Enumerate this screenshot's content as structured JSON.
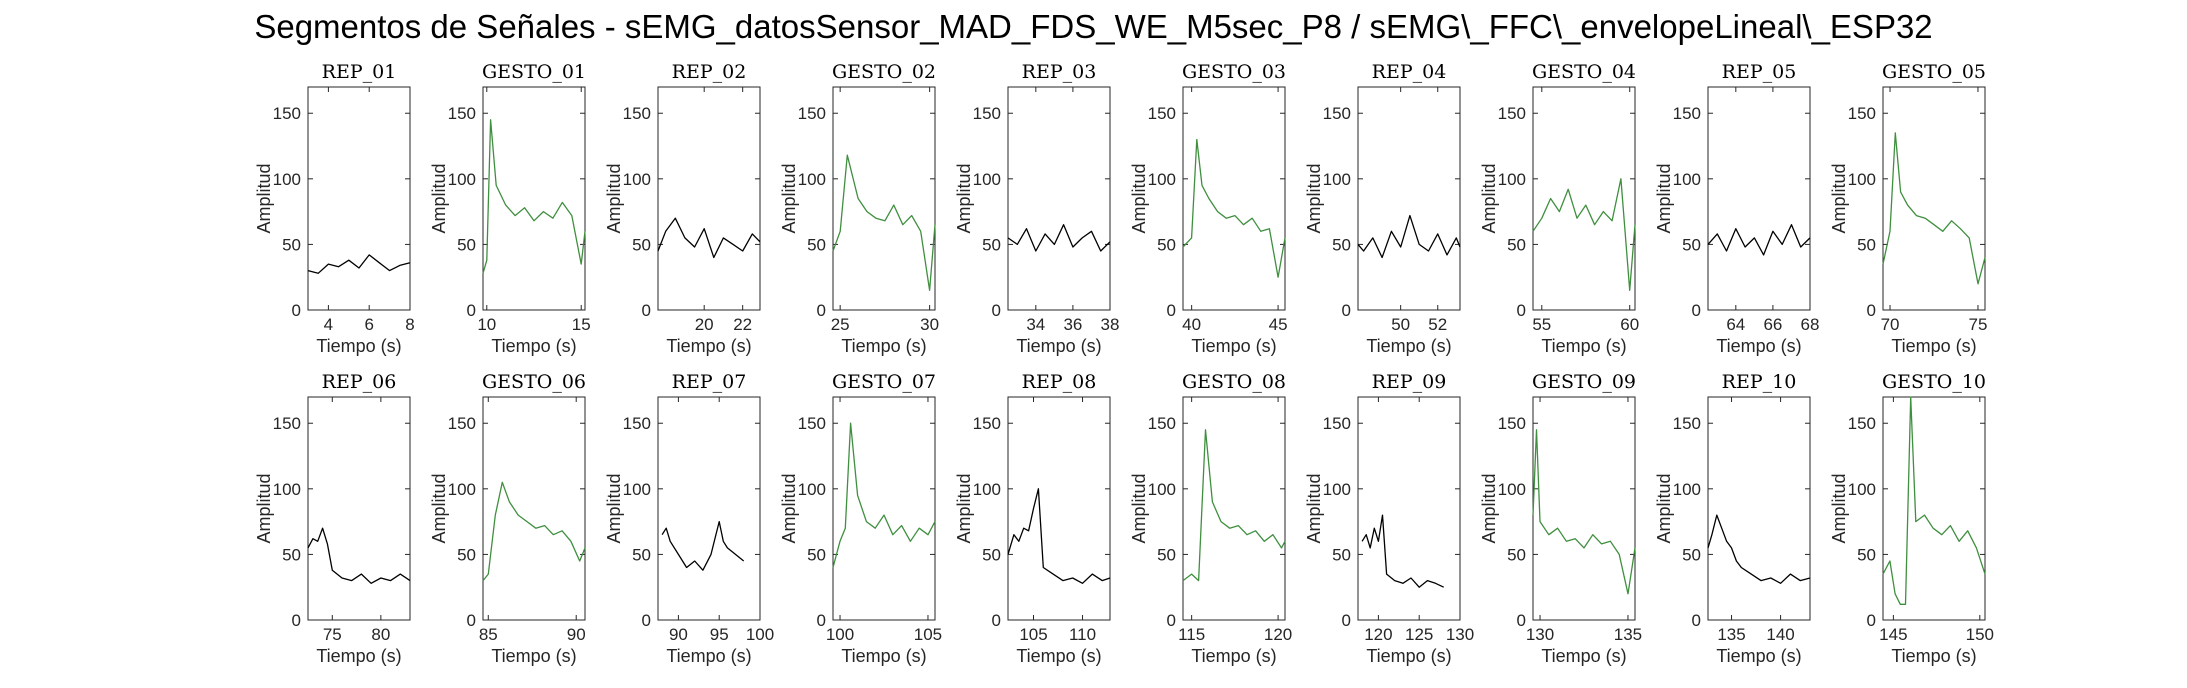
{
  "title": "Segmentos de Señales - sEMG_datosSensor_MAD_FDS_WE_M5sec_P8 / sEMG\\_FFC\\_envelopeLineal\\_ESP32",
  "colors": {
    "rep": "#000000",
    "gesto": "#3f8f3f",
    "axis": "#262626"
  },
  "chart_data": [
    {
      "type": "line",
      "title": "REP_01",
      "xlabel": "Tiempo (s)",
      "ylabel": "Amplitud",
      "xlim": [
        3,
        8
      ],
      "ylim": [
        0,
        170
      ],
      "xticks": [
        4,
        6,
        8
      ],
      "yticks": [
        0,
        50,
        100,
        150
      ],
      "color": "rep",
      "x": [
        3,
        3.5,
        4,
        4.5,
        5,
        5.5,
        6,
        6.5,
        7,
        7.5,
        8
      ],
      "y": [
        30,
        28,
        35,
        33,
        38,
        32,
        42,
        36,
        30,
        34,
        36
      ]
    },
    {
      "type": "line",
      "title": "GESTO_01",
      "xlabel": "Tiempo (s)",
      "ylabel": "Amplitud",
      "xlim": [
        9.8,
        15.2
      ],
      "ylim": [
        0,
        170
      ],
      "xticks": [
        10,
        15
      ],
      "yticks": [
        0,
        50,
        100,
        150
      ],
      "color": "gesto",
      "x": [
        9.8,
        10,
        10.2,
        10.5,
        11,
        11.5,
        12,
        12.5,
        13,
        13.5,
        14,
        14.5,
        15,
        15.2
      ],
      "y": [
        28,
        38,
        145,
        95,
        80,
        72,
        78,
        68,
        75,
        70,
        82,
        72,
        35,
        60
      ]
    },
    {
      "type": "line",
      "title": "REP_02",
      "xlabel": "Tiempo (s)",
      "ylabel": "Amplitud",
      "xlim": [
        17.6,
        22.9
      ],
      "ylim": [
        0,
        170
      ],
      "xticks": [
        20,
        22
      ],
      "yticks": [
        0,
        50,
        100,
        150
      ],
      "color": "rep",
      "x": [
        17.6,
        18,
        18.5,
        19,
        19.5,
        20,
        20.5,
        21,
        21.5,
        22,
        22.5,
        22.9
      ],
      "y": [
        45,
        60,
        70,
        55,
        48,
        62,
        40,
        55,
        50,
        45,
        58,
        52
      ]
    },
    {
      "type": "line",
      "title": "GESTO_02",
      "xlabel": "Tiempo (s)",
      "ylabel": "Amplitud",
      "xlim": [
        24.6,
        30.3
      ],
      "ylim": [
        0,
        170
      ],
      "xticks": [
        25,
        30
      ],
      "yticks": [
        0,
        50,
        100,
        150
      ],
      "color": "gesto",
      "x": [
        24.6,
        25,
        25.4,
        26,
        26.5,
        27,
        27.5,
        28,
        28.5,
        29,
        29.5,
        30,
        30.3
      ],
      "y": [
        45,
        60,
        118,
        85,
        75,
        70,
        68,
        80,
        65,
        72,
        60,
        15,
        65
      ]
    },
    {
      "type": "line",
      "title": "REP_03",
      "xlabel": "Tiempo (s)",
      "ylabel": "Amplitud",
      "xlim": [
        32.5,
        38
      ],
      "ylim": [
        0,
        170
      ],
      "xticks": [
        34,
        36,
        38
      ],
      "yticks": [
        0,
        50,
        100,
        150
      ],
      "color": "rep",
      "x": [
        32.5,
        33,
        33.5,
        34,
        34.5,
        35,
        35.5,
        36,
        36.5,
        37,
        37.5,
        38
      ],
      "y": [
        55,
        50,
        62,
        45,
        58,
        50,
        65,
        48,
        55,
        60,
        45,
        52
      ]
    },
    {
      "type": "line",
      "title": "GESTO_03",
      "xlabel": "Tiempo (s)",
      "ylabel": "Amplitud",
      "xlim": [
        39.5,
        45.4
      ],
      "ylim": [
        0,
        170
      ],
      "xticks": [
        40,
        45
      ],
      "yticks": [
        0,
        50,
        100,
        150
      ],
      "color": "gesto",
      "x": [
        39.5,
        40,
        40.3,
        40.6,
        41,
        41.5,
        42,
        42.5,
        43,
        43.5,
        44,
        44.5,
        45,
        45.4
      ],
      "y": [
        48,
        55,
        130,
        95,
        85,
        75,
        70,
        72,
        65,
        70,
        60,
        62,
        25,
        55
      ]
    },
    {
      "type": "line",
      "title": "REP_04",
      "xlabel": "Tiempo (s)",
      "ylabel": "Amplitud",
      "xlim": [
        47.7,
        53.2
      ],
      "ylim": [
        0,
        170
      ],
      "xticks": [
        50,
        52
      ],
      "yticks": [
        0,
        50,
        100,
        150
      ],
      "color": "rep",
      "x": [
        47.7,
        48,
        48.5,
        49,
        49.5,
        50,
        50.5,
        51,
        51.5,
        52,
        52.5,
        53,
        53.2
      ],
      "y": [
        50,
        45,
        55,
        40,
        60,
        48,
        72,
        50,
        45,
        58,
        42,
        55,
        48
      ]
    },
    {
      "type": "line",
      "title": "GESTO_04",
      "xlabel": "Tiempo (s)",
      "ylabel": "Amplitud",
      "xlim": [
        54.5,
        60.3
      ],
      "ylim": [
        0,
        170
      ],
      "xticks": [
        55,
        60
      ],
      "yticks": [
        0,
        50,
        100,
        150
      ],
      "color": "gesto",
      "x": [
        54.5,
        55,
        55.5,
        56,
        56.5,
        57,
        57.5,
        58,
        58.5,
        59,
        59.5,
        60,
        60.3
      ],
      "y": [
        60,
        70,
        85,
        75,
        92,
        70,
        80,
        65,
        75,
        68,
        100,
        15,
        65
      ]
    },
    {
      "type": "line",
      "title": "REP_05",
      "xlabel": "Tiempo (s)",
      "ylabel": "Amplitud",
      "xlim": [
        62.5,
        68
      ],
      "ylim": [
        0,
        170
      ],
      "xticks": [
        64,
        66,
        68
      ],
      "yticks": [
        0,
        50,
        100,
        150
      ],
      "color": "rep",
      "x": [
        62.5,
        63,
        63.5,
        64,
        64.5,
        65,
        65.5,
        66,
        66.5,
        67,
        67.5,
        68
      ],
      "y": [
        50,
        58,
        45,
        62,
        48,
        55,
        42,
        60,
        50,
        65,
        48,
        55
      ]
    },
    {
      "type": "line",
      "title": "GESTO_05",
      "xlabel": "Tiempo (s)",
      "ylabel": "Amplitud",
      "xlim": [
        69.6,
        75.4
      ],
      "ylim": [
        0,
        170
      ],
      "xticks": [
        70,
        75
      ],
      "yticks": [
        0,
        50,
        100,
        150
      ],
      "color": "gesto",
      "x": [
        69.6,
        70,
        70.3,
        70.6,
        71,
        71.5,
        72,
        72.5,
        73,
        73.5,
        74,
        74.5,
        75,
        75.4
      ],
      "y": [
        35,
        60,
        135,
        90,
        80,
        72,
        70,
        65,
        60,
        68,
        62,
        55,
        20,
        40
      ]
    },
    {
      "type": "line",
      "title": "REP_06",
      "xlabel": "Tiempo (s)",
      "ylabel": "Amplitud",
      "xlim": [
        72.5,
        83
      ],
      "ylim": [
        0,
        170
      ],
      "xticks": [
        75,
        80
      ],
      "yticks": [
        0,
        50,
        100,
        150
      ],
      "color": "rep",
      "x": [
        72.5,
        73,
        73.5,
        74,
        74.5,
        75,
        76,
        77,
        78,
        79,
        80,
        81,
        82,
        83
      ],
      "y": [
        55,
        62,
        60,
        70,
        58,
        38,
        32,
        30,
        35,
        28,
        32,
        30,
        35,
        30
      ]
    },
    {
      "type": "line",
      "title": "GESTO_06",
      "xlabel": "Tiempo (s)",
      "ylabel": "Amplitud",
      "xlim": [
        84.7,
        90.5
      ],
      "ylim": [
        0,
        170
      ],
      "xticks": [
        85,
        90
      ],
      "yticks": [
        0,
        50,
        100,
        150
      ],
      "color": "gesto",
      "x": [
        84.7,
        85,
        85.4,
        85.8,
        86.2,
        86.7,
        87.2,
        87.7,
        88.2,
        88.7,
        89.2,
        89.7,
        90.2,
        90.5
      ],
      "y": [
        30,
        35,
        80,
        105,
        90,
        80,
        75,
        70,
        72,
        65,
        68,
        60,
        45,
        55
      ]
    },
    {
      "type": "line",
      "title": "REP_07",
      "xlabel": "Tiempo (s)",
      "ylabel": "Amplitud",
      "xlim": [
        87.5,
        100
      ],
      "ylim": [
        0,
        170
      ],
      "xticks": [
        90,
        95,
        100
      ],
      "yticks": [
        0,
        50,
        100,
        150
      ],
      "color": "rep",
      "x": [
        88,
        88.5,
        89,
        90,
        91,
        92,
        93,
        94,
        95,
        95.5,
        96,
        97,
        98
      ],
      "y": [
        65,
        70,
        60,
        50,
        40,
        45,
        38,
        50,
        75,
        60,
        55,
        50,
        45
      ]
    },
    {
      "type": "line",
      "title": "GESTO_07",
      "xlabel": "Tiempo (s)",
      "ylabel": "Amplitud",
      "xlim": [
        99.6,
        105.4
      ],
      "ylim": [
        0,
        170
      ],
      "xticks": [
        100,
        105
      ],
      "yticks": [
        0,
        50,
        100,
        150
      ],
      "color": "gesto",
      "x": [
        99.6,
        100,
        100.3,
        100.6,
        101,
        101.5,
        102,
        102.5,
        103,
        103.5,
        104,
        104.5,
        105,
        105.4
      ],
      "y": [
        40,
        60,
        70,
        150,
        95,
        75,
        70,
        80,
        65,
        72,
        60,
        70,
        65,
        75
      ]
    },
    {
      "type": "line",
      "title": "REP_08",
      "xlabel": "Tiempo (s)",
      "ylabel": "Amplitud",
      "xlim": [
        102.4,
        112.8
      ],
      "ylim": [
        0,
        170
      ],
      "xticks": [
        105,
        110
      ],
      "yticks": [
        0,
        50,
        100,
        150
      ],
      "color": "rep",
      "x": [
        102.4,
        103,
        103.5,
        104,
        104.5,
        105,
        105.5,
        106,
        107,
        108,
        109,
        110,
        111,
        112,
        112.8
      ],
      "y": [
        50,
        65,
        60,
        70,
        68,
        85,
        100,
        40,
        35,
        30,
        32,
        28,
        35,
        30,
        32
      ]
    },
    {
      "type": "line",
      "title": "GESTO_08",
      "xlabel": "Tiempo (s)",
      "ylabel": "Amplitud",
      "xlim": [
        114.5,
        120.4
      ],
      "ylim": [
        0,
        170
      ],
      "xticks": [
        115,
        120
      ],
      "yticks": [
        0,
        50,
        100,
        150
      ],
      "color": "gesto",
      "x": [
        114.5,
        115,
        115.4,
        115.8,
        116.2,
        116.7,
        117.2,
        117.7,
        118.2,
        118.7,
        119.2,
        119.7,
        120.2,
        120.4
      ],
      "y": [
        30,
        35,
        30,
        145,
        90,
        75,
        70,
        72,
        65,
        68,
        60,
        65,
        55,
        60
      ]
    },
    {
      "type": "line",
      "title": "REP_09",
      "xlabel": "Tiempo (s)",
      "ylabel": "Amplitud",
      "xlim": [
        117.5,
        130
      ],
      "ylim": [
        0,
        170
      ],
      "xticks": [
        120,
        125,
        130
      ],
      "yticks": [
        0,
        50,
        100,
        150
      ],
      "color": "rep",
      "x": [
        118,
        118.5,
        119,
        119.5,
        120,
        120.5,
        121,
        122,
        123,
        124,
        125,
        126,
        127,
        128
      ],
      "y": [
        60,
        65,
        55,
        70,
        60,
        80,
        35,
        30,
        28,
        32,
        25,
        30,
        28,
        25
      ]
    },
    {
      "type": "line",
      "title": "GESTO_09",
      "xlabel": "Tiempo (s)",
      "ylabel": "Amplitud",
      "xlim": [
        129.6,
        135.4
      ],
      "ylim": [
        0,
        170
      ],
      "xticks": [
        130,
        135
      ],
      "yticks": [
        0,
        50,
        100,
        150
      ],
      "color": "gesto",
      "x": [
        129.6,
        129.8,
        130,
        130.5,
        131,
        131.5,
        132,
        132.5,
        133,
        133.5,
        134,
        134.5,
        135,
        135.4
      ],
      "y": [
        80,
        145,
        75,
        65,
        70,
        60,
        62,
        55,
        65,
        58,
        60,
        50,
        20,
        55
      ]
    },
    {
      "type": "line",
      "title": "REP_10",
      "xlabel": "Tiempo (s)",
      "ylabel": "Amplitud",
      "xlim": [
        132.6,
        143
      ],
      "ylim": [
        0,
        170
      ],
      "xticks": [
        135,
        140
      ],
      "yticks": [
        0,
        50,
        100,
        150
      ],
      "color": "rep",
      "x": [
        132.6,
        133,
        133.5,
        134,
        134.5,
        135,
        135.5,
        136,
        137,
        138,
        139,
        140,
        141,
        142,
        143
      ],
      "y": [
        55,
        65,
        80,
        70,
        60,
        55,
        45,
        40,
        35,
        30,
        32,
        28,
        35,
        30,
        32
      ]
    },
    {
      "type": "line",
      "title": "GESTO_10",
      "xlabel": "Tiempo (s)",
      "ylabel": "Amplitud",
      "xlim": [
        144.4,
        150.3
      ],
      "ylim": [
        0,
        170
      ],
      "xticks": [
        145,
        150
      ],
      "yticks": [
        0,
        50,
        100,
        150
      ],
      "color": "gesto",
      "x": [
        144.4,
        144.8,
        145.1,
        145.4,
        145.7,
        146,
        146.3,
        146.8,
        147.3,
        147.8,
        148.3,
        148.8,
        149.3,
        149.8,
        150.3
      ],
      "y": [
        35,
        45,
        20,
        12,
        12,
        170,
        75,
        80,
        70,
        65,
        72,
        60,
        68,
        55,
        35
      ]
    }
  ]
}
